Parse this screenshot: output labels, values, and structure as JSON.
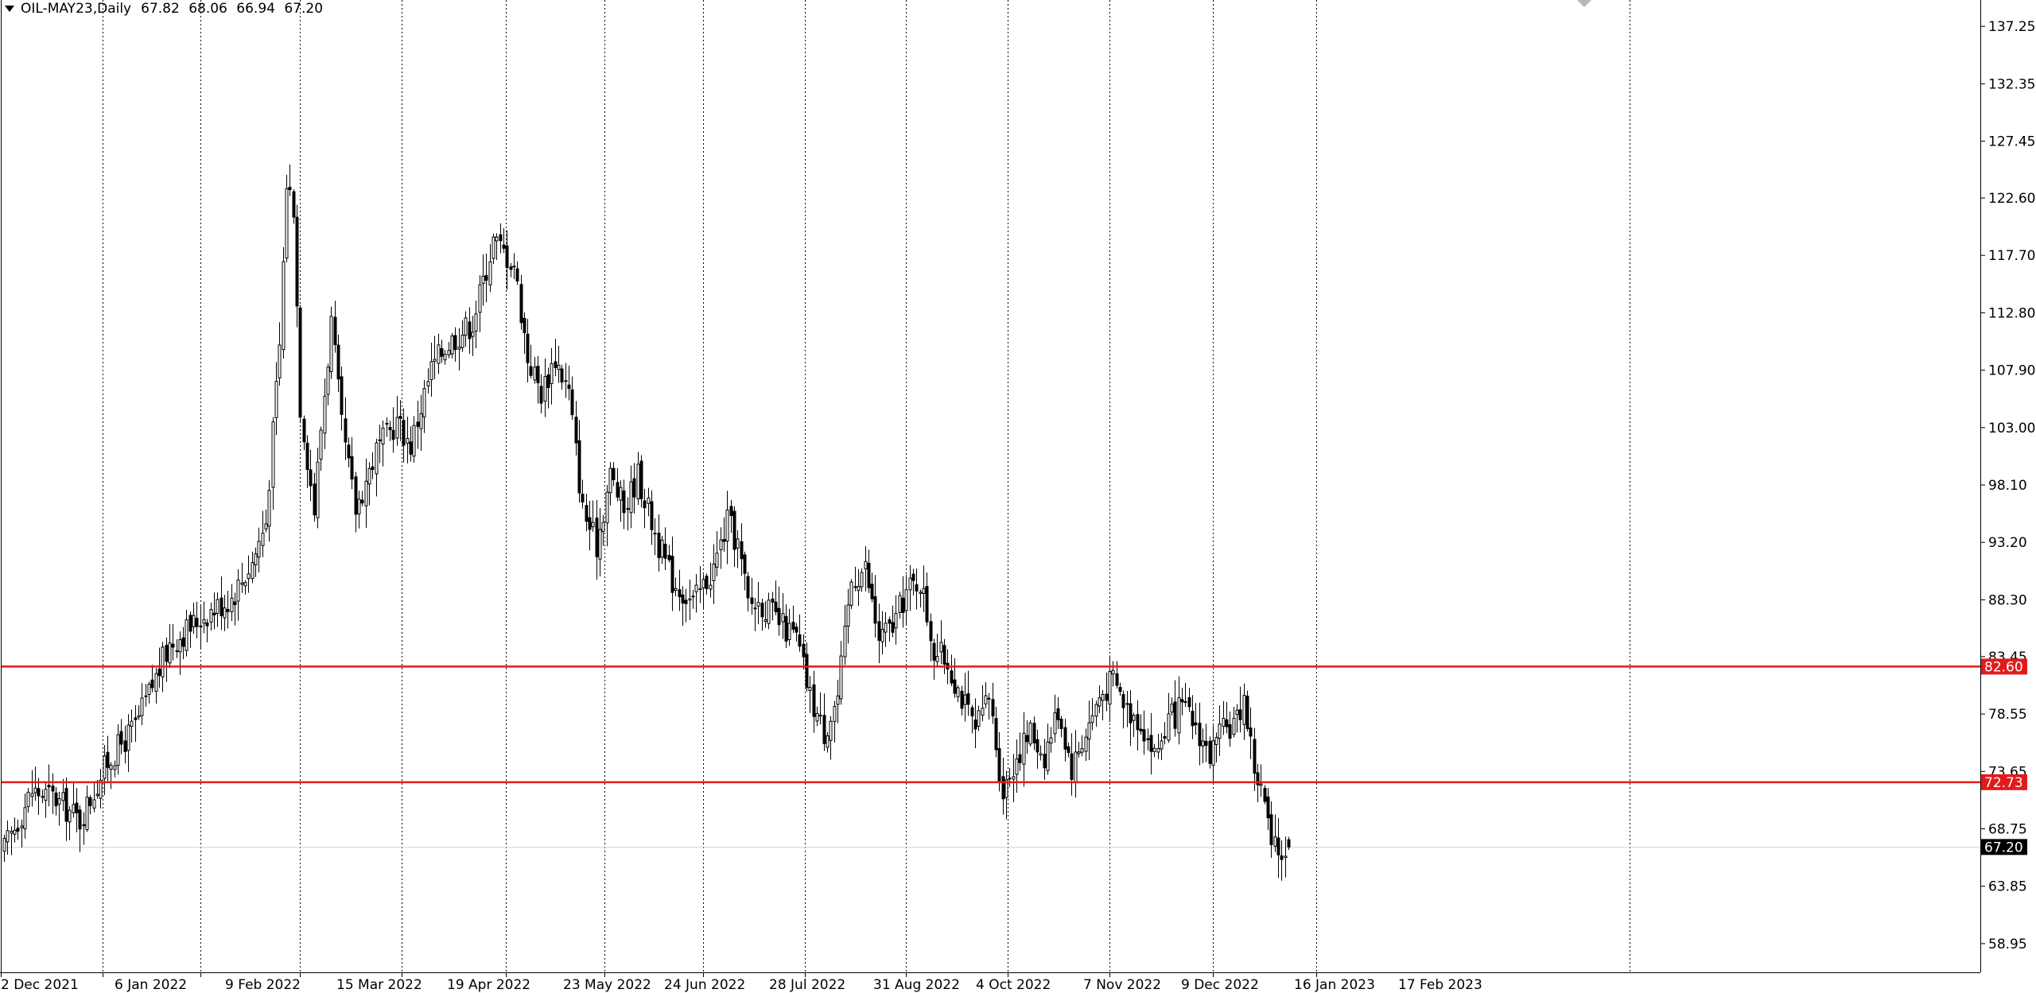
{
  "header": {
    "symbol_timeframe": "OIL-MAY23,Daily",
    "open": "67.82",
    "high": "68.06",
    "low": "66.94",
    "close": "67.20"
  },
  "colors": {
    "background": "#ffffff",
    "candle": "#000000",
    "bull_body": "#ffffff",
    "bear_body": "#000000",
    "grid": "#000000",
    "level_line": "#e31a1c",
    "level_label_bg": "#e31a1c",
    "price_label_bg": "#000000",
    "label_text": "#ffffff"
  },
  "chart_data": {
    "type": "candlestick",
    "title": "",
    "xlabel": "",
    "ylabel": "",
    "ylim": [
      56.5,
      139.5
    ],
    "x_tick_labels": [
      "2 Dec 2021",
      "6 Jan 2022",
      "9 Feb 2022",
      "15 Mar 2022",
      "19 Apr 2022",
      "23 May 2022",
      "24 Jun 2022",
      "28 Jul 2022",
      "31 Aug 2022",
      "4 Oct 2022",
      "7 Nov 2022",
      "9 Dec 2022",
      "16 Jan 2023",
      "17 Feb 2023"
    ],
    "y_tick_labels": [
      "137.25",
      "132.35",
      "127.45",
      "122.60",
      "117.70",
      "112.80",
      "107.90",
      "103.00",
      "98.10",
      "93.20",
      "88.30",
      "83.45",
      "78.55",
      "73.65",
      "68.75",
      "63.85",
      "58.95"
    ],
    "horizontal_levels": [
      {
        "value": 82.6,
        "label": "82.60"
      },
      {
        "value": 72.73,
        "label": "72.73"
      }
    ],
    "last_price": {
      "value": 67.2,
      "label": "67.20"
    },
    "grid": "vertical dotted",
    "close_path": [
      [
        0,
        67.0
      ],
      [
        8,
        72.0
      ],
      [
        14,
        71.5
      ],
      [
        22,
        69.5
      ],
      [
        30,
        74.5
      ],
      [
        38,
        77.5
      ],
      [
        48,
        84.5
      ],
      [
        58,
        87.0
      ],
      [
        66,
        88.5
      ],
      [
        72,
        91.5
      ],
      [
        76,
        95.0
      ],
      [
        80,
        110.0
      ],
      [
        82,
        124.0
      ],
      [
        84,
        122.0
      ],
      [
        86,
        105.0
      ],
      [
        90,
        96.0
      ],
      [
        92,
        103.0
      ],
      [
        95,
        112.0
      ],
      [
        98,
        103.0
      ],
      [
        102,
        96.0
      ],
      [
        108,
        101.0
      ],
      [
        114,
        103.5
      ],
      [
        118,
        101.5
      ],
      [
        124,
        108.0
      ],
      [
        128,
        110.0
      ],
      [
        136,
        112.0
      ],
      [
        142,
        119.0
      ],
      [
        148,
        117.0
      ],
      [
        152,
        109.0
      ],
      [
        156,
        106.0
      ],
      [
        160,
        109.0
      ],
      [
        164,
        106.0
      ],
      [
        168,
        96.0
      ],
      [
        172,
        93.0
      ],
      [
        176,
        99.0
      ],
      [
        180,
        96.0
      ],
      [
        184,
        99.0
      ],
      [
        190,
        93.0
      ],
      [
        194,
        90.0
      ],
      [
        200,
        88.0
      ],
      [
        206,
        91.0
      ],
      [
        210,
        95.0
      ],
      [
        213,
        93.0
      ],
      [
        216,
        88.0
      ],
      [
        220,
        88.0
      ],
      [
        226,
        86.0
      ],
      [
        230,
        85.0
      ],
      [
        234,
        80.0
      ],
      [
        238,
        77.0
      ],
      [
        242,
        80.0
      ],
      [
        246,
        90.0
      ],
      [
        250,
        91.0
      ],
      [
        254,
        85.0
      ],
      [
        258,
        86.0
      ],
      [
        262,
        89.0
      ],
      [
        266,
        90.0
      ],
      [
        270,
        84.0
      ],
      [
        274,
        83.0
      ],
      [
        278,
        80.0
      ],
      [
        282,
        77.0
      ],
      [
        286,
        80.0
      ],
      [
        290,
        72.0
      ],
      [
        294,
        75.0
      ],
      [
        298,
        77.0
      ],
      [
        302,
        75.0
      ],
      [
        306,
        79.0
      ],
      [
        310,
        74.0
      ],
      [
        314,
        77.0
      ],
      [
        318,
        80.0
      ],
      [
        322,
        81.5
      ],
      [
        326,
        79.0
      ],
      [
        330,
        78.0
      ],
      [
        334,
        75.0
      ],
      [
        338,
        78.0
      ],
      [
        342,
        79.0
      ],
      [
        346,
        77.5
      ],
      [
        350,
        75.0
      ],
      [
        354,
        77.0
      ],
      [
        358,
        78.0
      ],
      [
        360,
        80.0
      ],
      [
        363,
        74.0
      ],
      [
        366,
        71.0
      ],
      [
        368,
        67.0
      ],
      [
        371,
        66.8
      ],
      [
        373,
        67.2
      ]
    ]
  }
}
